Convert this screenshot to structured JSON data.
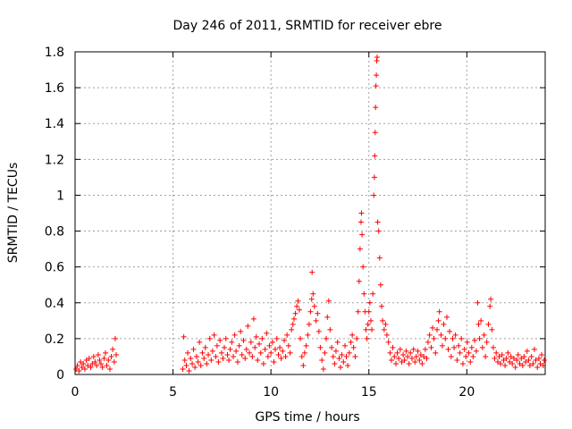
{
  "chart_data": {
    "type": "scatter",
    "title": "Day 246 of 2011, SRMTID for receiver ebre",
    "xlabel": "GPS time / hours",
    "ylabel": "SRMTID / TECUs",
    "xlim": [
      0,
      24
    ],
    "ylim": [
      0,
      1.8
    ],
    "xticks": [
      0,
      5,
      10,
      15,
      20
    ],
    "xtick_labels": [
      "0",
      "5",
      "10",
      "15",
      "20"
    ],
    "yticks": [
      0,
      0.2,
      0.4,
      0.6,
      0.8,
      1,
      1.2,
      1.4,
      1.6,
      1.8
    ],
    "ytick_labels": [
      "0",
      "0.2",
      "0.4",
      "0.6",
      "0.8",
      "1",
      "1.2",
      "1.4",
      "1.6",
      "1.8"
    ],
    "grid": true,
    "marker": "plus",
    "marker_color": "#ff0000",
    "series": [
      {
        "name": "SRMTID",
        "points": [
          [
            0.05,
            0.03
          ],
          [
            0.12,
            0.05
          ],
          [
            0.2,
            0.02
          ],
          [
            0.28,
            0.07
          ],
          [
            0.35,
            0.04
          ],
          [
            0.42,
            0.06
          ],
          [
            0.5,
            0.03
          ],
          [
            0.58,
            0.08
          ],
          [
            0.65,
            0.05
          ],
          [
            0.72,
            0.09
          ],
          [
            0.8,
            0.04
          ],
          [
            0.88,
            0.06
          ],
          [
            0.95,
            0.1
          ],
          [
            1.02,
            0.07
          ],
          [
            1.1,
            0.05
          ],
          [
            1.18,
            0.11
          ],
          [
            1.25,
            0.08
          ],
          [
            1.32,
            0.06
          ],
          [
            1.4,
            0.04
          ],
          [
            1.48,
            0.09
          ],
          [
            1.55,
            0.12
          ],
          [
            1.62,
            0.05
          ],
          [
            1.7,
            0.08
          ],
          [
            1.78,
            0.03
          ],
          [
            1.85,
            0.1
          ],
          [
            1.92,
            0.14
          ],
          [
            2.0,
            0.07
          ],
          [
            2.05,
            0.2
          ],
          [
            2.1,
            0.11
          ],
          [
            5.5,
            0.03
          ],
          [
            5.55,
            0.21
          ],
          [
            5.6,
            0.08
          ],
          [
            5.68,
            0.05
          ],
          [
            5.75,
            0.12
          ],
          [
            5.82,
            0.02
          ],
          [
            5.9,
            0.09
          ],
          [
            5.98,
            0.06
          ],
          [
            6.05,
            0.14
          ],
          [
            6.12,
            0.04
          ],
          [
            6.2,
            0.1
          ],
          [
            6.28,
            0.07
          ],
          [
            6.35,
            0.18
          ],
          [
            6.42,
            0.05
          ],
          [
            6.5,
            0.12
          ],
          [
            6.58,
            0.09
          ],
          [
            6.65,
            0.15
          ],
          [
            6.72,
            0.06
          ],
          [
            6.8,
            0.11
          ],
          [
            6.88,
            0.2
          ],
          [
            6.95,
            0.08
          ],
          [
            7.02,
            0.13
          ],
          [
            7.1,
            0.22
          ],
          [
            7.18,
            0.1
          ],
          [
            7.25,
            0.16
          ],
          [
            7.32,
            0.07
          ],
          [
            7.4,
            0.19
          ],
          [
            7.48,
            0.12
          ],
          [
            7.55,
            0.09
          ],
          [
            7.62,
            0.15
          ],
          [
            7.7,
            0.2
          ],
          [
            7.78,
            0.11
          ],
          [
            7.85,
            0.08
          ],
          [
            7.92,
            0.14
          ],
          [
            8.0,
            0.18
          ],
          [
            8.08,
            0.1
          ],
          [
            8.15,
            0.22
          ],
          [
            8.22,
            0.13
          ],
          [
            8.3,
            0.07
          ],
          [
            8.38,
            0.16
          ],
          [
            8.45,
            0.24
          ],
          [
            8.52,
            0.11
          ],
          [
            8.6,
            0.19
          ],
          [
            8.68,
            0.09
          ],
          [
            8.75,
            0.14
          ],
          [
            8.82,
            0.27
          ],
          [
            8.9,
            0.12
          ],
          [
            8.98,
            0.18
          ],
          [
            9.05,
            0.1
          ],
          [
            9.12,
            0.31
          ],
          [
            9.18,
            0.15
          ],
          [
            9.25,
            0.21
          ],
          [
            9.32,
            0.08
          ],
          [
            9.4,
            0.17
          ],
          [
            9.48,
            0.12
          ],
          [
            9.55,
            0.2
          ],
          [
            9.62,
            0.06
          ],
          [
            9.7,
            0.14
          ],
          [
            9.78,
            0.23
          ],
          [
            9.85,
            0.1
          ],
          [
            9.92,
            0.16
          ],
          [
            10.0,
            0.12
          ],
          [
            10.08,
            0.18
          ],
          [
            10.15,
            0.07
          ],
          [
            10.22,
            0.14
          ],
          [
            10.3,
            0.2
          ],
          [
            10.38,
            0.11
          ],
          [
            10.45,
            0.15
          ],
          [
            10.52,
            0.09
          ],
          [
            10.6,
            0.13
          ],
          [
            10.68,
            0.19
          ],
          [
            10.75,
            0.1
          ],
          [
            10.82,
            0.22
          ],
          [
            10.9,
            0.16
          ],
          [
            10.98,
            0.12
          ],
          [
            11.05,
            0.25
          ],
          [
            11.12,
            0.28
          ],
          [
            11.18,
            0.31
          ],
          [
            11.25,
            0.34
          ],
          [
            11.32,
            0.38
          ],
          [
            11.38,
            0.41
          ],
          [
            11.45,
            0.36
          ],
          [
            11.5,
            0.2
          ],
          [
            11.58,
            0.1
          ],
          [
            11.65,
            0.05
          ],
          [
            11.72,
            0.12
          ],
          [
            11.8,
            0.16
          ],
          [
            11.88,
            0.22
          ],
          [
            11.95,
            0.28
          ],
          [
            12.02,
            0.35
          ],
          [
            12.08,
            0.42
          ],
          [
            12.1,
            0.57
          ],
          [
            12.15,
            0.45
          ],
          [
            12.22,
            0.38
          ],
          [
            12.3,
            0.3
          ],
          [
            12.38,
            0.34
          ],
          [
            12.45,
            0.24
          ],
          [
            12.52,
            0.15
          ],
          [
            12.6,
            0.08
          ],
          [
            12.68,
            0.03
          ],
          [
            12.75,
            0.12
          ],
          [
            12.82,
            0.2
          ],
          [
            12.88,
            0.32
          ],
          [
            12.95,
            0.41
          ],
          [
            13.02,
            0.25
          ],
          [
            13.1,
            0.15
          ],
          [
            13.18,
            0.1
          ],
          [
            13.25,
            0.06
          ],
          [
            13.32,
            0.13
          ],
          [
            13.4,
            0.18
          ],
          [
            13.48,
            0.09
          ],
          [
            13.55,
            0.04
          ],
          [
            13.62,
            0.11
          ],
          [
            13.7,
            0.07
          ],
          [
            13.78,
            0.16
          ],
          [
            13.85,
            0.1
          ],
          [
            13.92,
            0.05
          ],
          [
            14.0,
            0.12
          ],
          [
            14.08,
            0.18
          ],
          [
            14.15,
            0.22
          ],
          [
            14.22,
            0.15
          ],
          [
            14.3,
            0.1
          ],
          [
            14.38,
            0.2
          ],
          [
            14.45,
            0.35
          ],
          [
            14.5,
            0.52
          ],
          [
            14.55,
            0.7
          ],
          [
            14.6,
            0.85
          ],
          [
            14.62,
            0.9
          ],
          [
            14.65,
            0.78
          ],
          [
            14.7,
            0.6
          ],
          [
            14.75,
            0.45
          ],
          [
            14.8,
            0.35
          ],
          [
            14.85,
            0.25
          ],
          [
            14.9,
            0.2
          ],
          [
            14.95,
            0.28
          ],
          [
            15.0,
            0.35
          ],
          [
            15.05,
            0.4
          ],
          [
            15.1,
            0.3
          ],
          [
            15.15,
            0.25
          ],
          [
            15.2,
            0.45
          ],
          [
            15.25,
            1.0
          ],
          [
            15.28,
            1.1
          ],
          [
            15.3,
            1.22
          ],
          [
            15.32,
            1.35
          ],
          [
            15.34,
            1.49
          ],
          [
            15.36,
            1.61
          ],
          [
            15.38,
            1.67
          ],
          [
            15.4,
            1.75
          ],
          [
            15.42,
            1.77
          ],
          [
            15.45,
            0.85
          ],
          [
            15.5,
            0.8
          ],
          [
            15.55,
            0.65
          ],
          [
            15.6,
            0.5
          ],
          [
            15.65,
            0.38
          ],
          [
            15.7,
            0.3
          ],
          [
            15.78,
            0.25
          ],
          [
            15.85,
            0.28
          ],
          [
            15.92,
            0.22
          ],
          [
            16.0,
            0.18
          ],
          [
            16.08,
            0.12
          ],
          [
            16.15,
            0.08
          ],
          [
            16.22,
            0.15
          ],
          [
            16.3,
            0.1
          ],
          [
            16.38,
            0.06
          ],
          [
            16.45,
            0.12
          ],
          [
            16.52,
            0.09
          ],
          [
            16.6,
            0.14
          ],
          [
            16.68,
            0.07
          ],
          [
            16.75,
            0.11
          ],
          [
            16.82,
            0.08
          ],
          [
            16.9,
            0.13
          ],
          [
            16.98,
            0.1
          ],
          [
            17.05,
            0.06
          ],
          [
            17.12,
            0.12
          ],
          [
            17.2,
            0.09
          ],
          [
            17.28,
            0.14
          ],
          [
            17.35,
            0.07
          ],
          [
            17.42,
            0.1
          ],
          [
            17.5,
            0.13
          ],
          [
            17.58,
            0.08
          ],
          [
            17.65,
            0.11
          ],
          [
            17.72,
            0.06
          ],
          [
            17.8,
            0.1
          ],
          [
            17.88,
            0.14
          ],
          [
            17.95,
            0.09
          ],
          [
            18.02,
            0.18
          ],
          [
            18.1,
            0.22
          ],
          [
            18.18,
            0.15
          ],
          [
            18.25,
            0.26
          ],
          [
            18.32,
            0.2
          ],
          [
            18.4,
            0.12
          ],
          [
            18.48,
            0.25
          ],
          [
            18.55,
            0.3
          ],
          [
            18.6,
            0.35
          ],
          [
            18.68,
            0.22
          ],
          [
            18.75,
            0.16
          ],
          [
            18.82,
            0.28
          ],
          [
            18.9,
            0.2
          ],
          [
            18.98,
            0.32
          ],
          [
            19.05,
            0.14
          ],
          [
            19.12,
            0.24
          ],
          [
            19.2,
            0.1
          ],
          [
            19.28,
            0.2
          ],
          [
            19.35,
            0.15
          ],
          [
            19.42,
            0.22
          ],
          [
            19.5,
            0.08
          ],
          [
            19.58,
            0.16
          ],
          [
            19.65,
            0.12
          ],
          [
            19.72,
            0.2
          ],
          [
            19.8,
            0.06
          ],
          [
            19.88,
            0.14
          ],
          [
            19.95,
            0.1
          ],
          [
            20.02,
            0.18
          ],
          [
            20.1,
            0.12
          ],
          [
            20.18,
            0.07
          ],
          [
            20.25,
            0.15
          ],
          [
            20.32,
            0.1
          ],
          [
            20.4,
            0.19
          ],
          [
            20.48,
            0.13
          ],
          [
            20.55,
            0.4
          ],
          [
            20.6,
            0.28
          ],
          [
            20.65,
            0.2
          ],
          [
            20.72,
            0.3
          ],
          [
            20.8,
            0.15
          ],
          [
            20.88,
            0.22
          ],
          [
            20.95,
            0.1
          ],
          [
            21.02,
            0.18
          ],
          [
            21.1,
            0.28
          ],
          [
            21.18,
            0.38
          ],
          [
            21.22,
            0.42
          ],
          [
            21.28,
            0.25
          ],
          [
            21.35,
            0.15
          ],
          [
            21.42,
            0.09
          ],
          [
            21.5,
            0.12
          ],
          [
            21.58,
            0.07
          ],
          [
            21.65,
            0.1
          ],
          [
            21.72,
            0.06
          ],
          [
            21.8,
            0.11
          ],
          [
            21.88,
            0.08
          ],
          [
            21.95,
            0.05
          ],
          [
            22.02,
            0.09
          ],
          [
            22.1,
            0.12
          ],
          [
            22.18,
            0.07
          ],
          [
            22.25,
            0.1
          ],
          [
            22.32,
            0.06
          ],
          [
            22.4,
            0.09
          ],
          [
            22.48,
            0.04
          ],
          [
            22.55,
            0.08
          ],
          [
            22.62,
            0.11
          ],
          [
            22.7,
            0.06
          ],
          [
            22.78,
            0.09
          ],
          [
            22.85,
            0.05
          ],
          [
            22.92,
            0.1
          ],
          [
            23.0,
            0.07
          ],
          [
            23.08,
            0.13
          ],
          [
            23.15,
            0.08
          ],
          [
            23.22,
            0.05
          ],
          [
            23.3,
            0.1
          ],
          [
            23.38,
            0.06
          ],
          [
            23.45,
            0.14
          ],
          [
            23.52,
            0.08
          ],
          [
            23.6,
            0.04
          ],
          [
            23.68,
            0.09
          ],
          [
            23.75,
            0.06
          ],
          [
            23.82,
            0.11
          ],
          [
            23.9,
            0.05
          ],
          [
            23.95,
            0.08
          ]
        ]
      }
    ]
  }
}
